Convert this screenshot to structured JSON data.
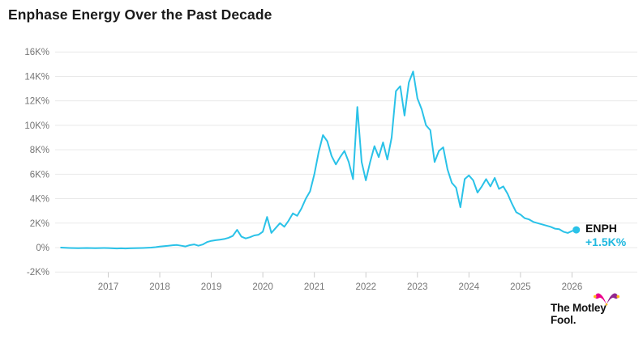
{
  "title": "Enphase Energy Over the Past Decade",
  "chart_data": {
    "type": "line",
    "title": "Enphase Energy Over the Past Decade",
    "grid": "horizontal",
    "legend_position": "end-of-line",
    "y_axis": {
      "unit": "%",
      "ylim": [
        -2000,
        16000
      ],
      "ticks": [
        {
          "label": "16K%",
          "value": 16000
        },
        {
          "label": "14K%",
          "value": 14000
        },
        {
          "label": "12K%",
          "value": 12000
        },
        {
          "label": "10K%",
          "value": 10000
        },
        {
          "label": "8K%",
          "value": 8000
        },
        {
          "label": "6K%",
          "value": 6000
        },
        {
          "label": "4K%",
          "value": 4000
        },
        {
          "label": "2K%",
          "value": 2000
        },
        {
          "label": "0%",
          "value": 0
        },
        {
          "label": "-2K%",
          "value": -2000
        }
      ]
    },
    "x_axis": {
      "ticks": [
        {
          "label": "2017",
          "value": 2017
        },
        {
          "label": "2018",
          "value": 2018
        },
        {
          "label": "2019",
          "value": 2019
        },
        {
          "label": "2020",
          "value": 2020
        },
        {
          "label": "2021",
          "value": 2021
        },
        {
          "label": "2022",
          "value": 2022
        },
        {
          "label": "2023",
          "value": 2023
        },
        {
          "label": "2024",
          "value": 2024
        },
        {
          "label": "2025",
          "value": 2025
        },
        {
          "label": "2026",
          "value": 2026
        }
      ],
      "range_note": "monthly samples, Feb 2016 through Feb 2026"
    },
    "series": [
      {
        "name": "ENPH",
        "unit": "% total return",
        "start_decimal_year": 2016.0833,
        "step_decimal_year": 0.0833333,
        "values": [
          0,
          -20,
          -30,
          -40,
          -50,
          -40,
          -30,
          -40,
          -50,
          -40,
          -30,
          -40,
          -60,
          -70,
          -60,
          -70,
          -60,
          -50,
          -40,
          -30,
          -20,
          0,
          30,
          80,
          120,
          150,
          190,
          210,
          150,
          90,
          200,
          260,
          150,
          250,
          450,
          550,
          600,
          650,
          700,
          800,
          950,
          1450,
          900,
          750,
          850,
          990,
          1050,
          1300,
          2500,
          1200,
          1600,
          2000,
          1700,
          2200,
          2800,
          2600,
          3200,
          4000,
          4600,
          6000,
          7800,
          9200,
          8700,
          7500,
          6800,
          7400,
          7900,
          7000,
          5600,
          11500,
          7000,
          5500,
          7000,
          8300,
          7400,
          8600,
          7200,
          9000,
          12800,
          13200,
          10800,
          13500,
          14400,
          12200,
          11300,
          10000,
          9600,
          7000,
          7900,
          8200,
          6400,
          5300,
          4900,
          3300,
          5600,
          5900,
          5500,
          4500,
          5000,
          5600,
          5000,
          5700,
          4800,
          5000,
          4400,
          3600,
          2900,
          2700,
          2400,
          2300,
          2100,
          2000,
          1900,
          1800,
          1700,
          1550,
          1500,
          1300,
          1200,
          1350,
          1450
        ]
      }
    ],
    "end_label": {
      "ticker": "ENPH",
      "value": "+1.5K%"
    },
    "colors": {
      "line": "#2AC2E8",
      "end_marker": "#2AC2E8",
      "value_text": "#1FB8DF",
      "gridline": "#E9E9E9",
      "tick_mark": "#CCCCCC",
      "axis_text": "#757575",
      "title_text": "#1A1A1A"
    }
  },
  "logo": {
    "text": "The Motley Fool.",
    "icon": "jester-hat-icon",
    "colors": {
      "pink": "#EC008C",
      "purple": "#92278F",
      "yellow": "#FDB913"
    }
  }
}
